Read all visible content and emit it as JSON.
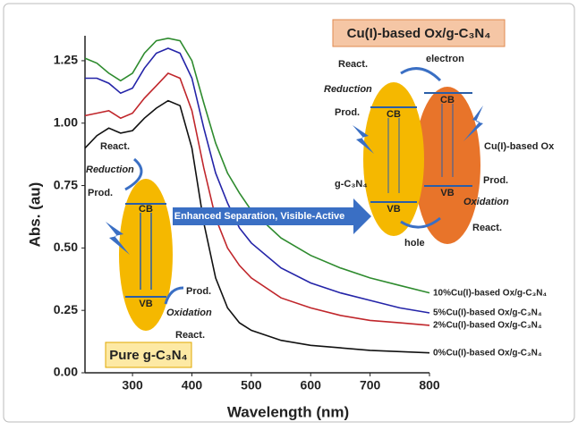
{
  "chart_data": {
    "type": "line",
    "x_label": "Wavelength (nm)",
    "y_label": "Abs. (au)",
    "x": [
      220,
      240,
      260,
      280,
      300,
      320,
      340,
      360,
      380,
      400,
      420,
      440,
      460,
      480,
      500,
      550,
      600,
      650,
      700,
      750,
      800
    ],
    "series": [
      {
        "name": "10%Cu(I)-based Ox/g-C₃N₄",
        "color": "#2e8b2e",
        "values": [
          1.26,
          1.24,
          1.2,
          1.17,
          1.2,
          1.28,
          1.33,
          1.34,
          1.33,
          1.25,
          1.08,
          0.92,
          0.8,
          0.72,
          0.65,
          0.54,
          0.47,
          0.42,
          0.38,
          0.35,
          0.32
        ]
      },
      {
        "name": "5%Cu(I)-based Ox/g-C₃N₄",
        "color": "#2424a8",
        "values": [
          1.18,
          1.18,
          1.16,
          1.12,
          1.14,
          1.22,
          1.28,
          1.3,
          1.28,
          1.18,
          0.98,
          0.8,
          0.68,
          0.58,
          0.52,
          0.42,
          0.36,
          0.32,
          0.29,
          0.26,
          0.24
        ]
      },
      {
        "name": "2%Cu(I)-based Ox/g-C₃N₄",
        "color": "#c0262b",
        "values": [
          1.03,
          1.04,
          1.05,
          1.02,
          1.04,
          1.1,
          1.15,
          1.2,
          1.18,
          1.05,
          0.82,
          0.62,
          0.5,
          0.43,
          0.38,
          0.3,
          0.26,
          0.23,
          0.21,
          0.2,
          0.19
        ]
      },
      {
        "name": "0%Cu(I)-based Ox/g-C₃N₄",
        "color": "#111111",
        "values": [
          0.9,
          0.95,
          0.98,
          0.96,
          0.97,
          1.02,
          1.06,
          1.09,
          1.07,
          0.9,
          0.6,
          0.38,
          0.26,
          0.2,
          0.17,
          0.13,
          0.11,
          0.1,
          0.09,
          0.085,
          0.08
        ]
      }
    ],
    "xlim": [
      220,
      800
    ],
    "xticks": [
      300,
      400,
      500,
      600,
      700,
      800
    ],
    "ylim": [
      0,
      1.35
    ],
    "yticks": [
      {
        "value": 0,
        "label": "0.00"
      },
      {
        "value": 0.25,
        "label": "0.25"
      },
      {
        "value": 0.5,
        "label": "0.50"
      },
      {
        "value": 0.75,
        "label": "0.75"
      },
      {
        "value": 1,
        "label": "1.00"
      },
      {
        "value": 1.25,
        "label": "1.25"
      }
    ],
    "annotations": {
      "composite_title": "Cu(I)-based Ox/g-C₃N₄",
      "pure_title": "Pure g-C₃N₄",
      "arrow_text": "Enhanced Separation, Visible-Active",
      "react": "React.",
      "prod": "Prod.",
      "reduction": "Reduction",
      "oxidation": "Oxidation",
      "cb": "CB",
      "vb": "VB",
      "electron": "electron",
      "hole": "hole",
      "g_c3n4": "g-C₃N₄",
      "cu_ox": "Cu(I)-based Ox"
    }
  }
}
